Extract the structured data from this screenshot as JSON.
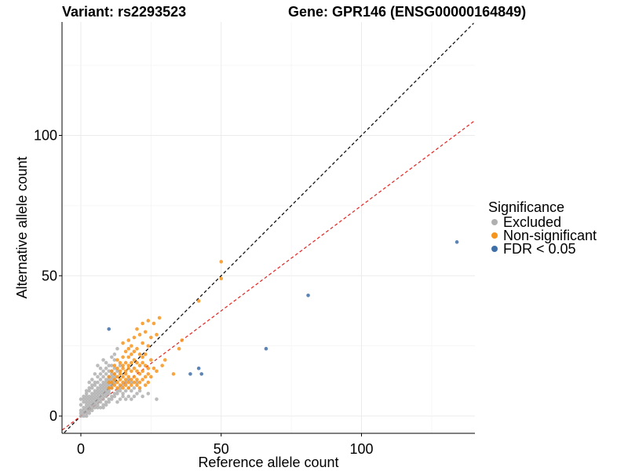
{
  "chart_data": {
    "type": "scatter",
    "title_left": "Variant: rs2293523",
    "title_right": "Gene: GPR146 (ENSG00000164849)",
    "xlabel": "Reference allele count",
    "ylabel": "Alternative allele count",
    "xlim": [
      -7,
      140
    ],
    "ylim": [
      -6,
      140
    ],
    "xticks": [
      0,
      50,
      100
    ],
    "yticks": [
      0,
      50,
      100
    ],
    "grid": true,
    "legend": {
      "title": "Significance",
      "position": "right",
      "entries": [
        {
          "label": "Excluded",
          "color": "#b0b0b0"
        },
        {
          "label": "Non-significant",
          "color": "#f7941d"
        },
        {
          "label": "FDR < 0.05",
          "color": "#3f6fa8"
        }
      ]
    },
    "reference_lines": [
      {
        "name": "identity",
        "slope": 1.0,
        "intercept": 0,
        "color": "#000000",
        "style": "dashed"
      },
      {
        "name": "fitted",
        "slope": 0.75,
        "intercept": 0,
        "color": "#e8231f",
        "style": "dashed"
      }
    ],
    "series": [
      {
        "name": "Excluded",
        "color": "#b0b0b0",
        "points": [
          [
            0,
            0
          ],
          [
            1,
            0
          ],
          [
            2,
            0
          ],
          [
            0,
            1
          ],
          [
            1,
            1
          ],
          [
            2,
            1
          ],
          [
            3,
            1
          ],
          [
            0,
            2
          ],
          [
            1,
            2
          ],
          [
            2,
            2
          ],
          [
            3,
            2
          ],
          [
            4,
            2
          ],
          [
            1,
            3
          ],
          [
            2,
            3
          ],
          [
            3,
            3
          ],
          [
            4,
            3
          ],
          [
            5,
            3
          ],
          [
            0,
            4
          ],
          [
            2,
            4
          ],
          [
            3,
            4
          ],
          [
            4,
            4
          ],
          [
            5,
            4
          ],
          [
            6,
            4
          ],
          [
            1,
            5
          ],
          [
            2,
            5
          ],
          [
            3,
            5
          ],
          [
            4,
            5
          ],
          [
            5,
            5
          ],
          [
            6,
            5
          ],
          [
            7,
            5
          ],
          [
            2,
            6
          ],
          [
            3,
            6
          ],
          [
            4,
            6
          ],
          [
            5,
            6
          ],
          [
            6,
            6
          ],
          [
            7,
            6
          ],
          [
            8,
            6
          ],
          [
            3,
            7
          ],
          [
            4,
            7
          ],
          [
            5,
            7
          ],
          [
            6,
            7
          ],
          [
            7,
            7
          ],
          [
            8,
            7
          ],
          [
            9,
            7
          ],
          [
            2,
            8
          ],
          [
            4,
            8
          ],
          [
            5,
            8
          ],
          [
            6,
            8
          ],
          [
            7,
            8
          ],
          [
            8,
            8
          ],
          [
            9,
            8
          ],
          [
            10,
            8
          ],
          [
            3,
            9
          ],
          [
            5,
            9
          ],
          [
            6,
            9
          ],
          [
            7,
            9
          ],
          [
            8,
            9
          ],
          [
            9,
            9
          ],
          [
            10,
            9
          ],
          [
            4,
            10
          ],
          [
            6,
            10
          ],
          [
            7,
            10
          ],
          [
            8,
            10
          ],
          [
            9,
            10
          ],
          [
            10,
            10
          ],
          [
            11,
            10
          ],
          [
            5,
            11
          ],
          [
            7,
            11
          ],
          [
            8,
            11
          ],
          [
            9,
            11
          ],
          [
            10,
            11
          ],
          [
            11,
            11
          ],
          [
            6,
            12
          ],
          [
            8,
            12
          ],
          [
            9,
            12
          ],
          [
            10,
            12
          ],
          [
            11,
            12
          ],
          [
            12,
            12
          ],
          [
            7,
            13
          ],
          [
            9,
            13
          ],
          [
            10,
            13
          ],
          [
            11,
            13
          ],
          [
            12,
            13
          ],
          [
            8,
            14
          ],
          [
            10,
            14
          ],
          [
            11,
            14
          ],
          [
            12,
            14
          ],
          [
            9,
            15
          ],
          [
            11,
            15
          ],
          [
            12,
            15
          ],
          [
            10,
            16
          ],
          [
            11,
            16
          ],
          [
            12,
            17
          ],
          [
            11,
            18
          ],
          [
            12,
            20
          ],
          [
            12,
            22
          ],
          [
            13,
            24
          ],
          [
            14,
            18
          ],
          [
            13,
            16
          ],
          [
            6,
            3
          ],
          [
            7,
            3
          ],
          [
            8,
            4
          ],
          [
            9,
            5
          ],
          [
            10,
            6
          ],
          [
            11,
            7
          ],
          [
            12,
            8
          ],
          [
            13,
            9
          ],
          [
            14,
            10
          ],
          [
            15,
            11
          ],
          [
            8,
            3
          ],
          [
            9,
            4
          ],
          [
            10,
            5
          ],
          [
            11,
            6
          ],
          [
            12,
            7
          ],
          [
            13,
            8
          ],
          [
            14,
            9
          ],
          [
            15,
            8
          ],
          [
            16,
            9
          ],
          [
            17,
            10
          ],
          [
            18,
            9
          ],
          [
            19,
            10
          ],
          [
            20,
            8
          ],
          [
            21,
            9
          ],
          [
            22,
            7
          ],
          [
            24,
            8
          ],
          [
            27,
            6
          ],
          [
            18,
            12
          ],
          [
            20,
            12
          ],
          [
            1,
            6
          ],
          [
            1,
            7
          ],
          [
            2,
            7
          ],
          [
            0,
            6
          ],
          [
            3,
            10
          ],
          [
            4,
            11
          ],
          [
            5,
            12
          ],
          [
            4,
            13
          ],
          [
            6,
            14
          ],
          [
            7,
            15
          ],
          [
            8,
            16
          ],
          [
            9,
            17
          ],
          [
            10,
            18
          ],
          [
            5,
            15
          ],
          [
            7,
            17
          ],
          [
            9,
            19
          ],
          [
            11,
            21
          ],
          [
            8,
            20
          ],
          [
            6,
            18
          ],
          [
            3,
            12
          ],
          [
            2,
            9
          ],
          [
            13,
            5
          ],
          [
            14,
            6
          ],
          [
            15,
            7
          ],
          [
            16,
            6
          ],
          [
            17,
            7
          ],
          [
            18,
            6
          ],
          [
            19,
            7
          ],
          [
            16,
            12
          ],
          [
            17,
            13
          ]
        ]
      },
      {
        "name": "Non-significant",
        "color": "#f7941d",
        "points": [
          [
            10,
            10
          ],
          [
            11,
            10
          ],
          [
            12,
            11
          ],
          [
            13,
            10
          ],
          [
            14,
            11
          ],
          [
            15,
            10
          ],
          [
            16,
            11
          ],
          [
            17,
            10
          ],
          [
            10,
            12
          ],
          [
            11,
            12
          ],
          [
            12,
            13
          ],
          [
            13,
            12
          ],
          [
            14,
            13
          ],
          [
            15,
            12
          ],
          [
            16,
            13
          ],
          [
            17,
            12
          ],
          [
            18,
            11
          ],
          [
            19,
            12
          ],
          [
            20,
            11
          ],
          [
            21,
            10
          ],
          [
            10,
            14
          ],
          [
            12,
            15
          ],
          [
            13,
            14
          ],
          [
            14,
            15
          ],
          [
            15,
            14
          ],
          [
            16,
            15
          ],
          [
            17,
            14
          ],
          [
            18,
            13
          ],
          [
            19,
            14
          ],
          [
            20,
            13
          ],
          [
            21,
            12
          ],
          [
            22,
            13
          ],
          [
            23,
            11
          ],
          [
            24,
            12
          ],
          [
            11,
            16
          ],
          [
            13,
            17
          ],
          [
            14,
            16
          ],
          [
            15,
            17
          ],
          [
            16,
            16
          ],
          [
            17,
            17
          ],
          [
            18,
            16
          ],
          [
            19,
            17
          ],
          [
            20,
            16
          ],
          [
            21,
            15
          ],
          [
            22,
            16
          ],
          [
            23,
            14
          ],
          [
            24,
            15
          ],
          [
            25,
            14
          ],
          [
            12,
            18
          ],
          [
            14,
            19
          ],
          [
            15,
            18
          ],
          [
            16,
            19
          ],
          [
            17,
            18
          ],
          [
            18,
            19
          ],
          [
            19,
            20
          ],
          [
            20,
            19
          ],
          [
            21,
            18
          ],
          [
            22,
            19
          ],
          [
            23,
            18
          ],
          [
            24,
            17
          ],
          [
            26,
            17
          ],
          [
            27,
            16
          ],
          [
            13,
            20
          ],
          [
            15,
            21
          ],
          [
            17,
            21
          ],
          [
            18,
            22
          ],
          [
            19,
            23
          ],
          [
            21,
            22
          ],
          [
            22,
            21
          ],
          [
            23,
            22
          ],
          [
            25,
            20
          ],
          [
            16,
            23
          ],
          [
            17,
            24
          ],
          [
            18,
            25
          ],
          [
            20,
            24
          ],
          [
            22,
            26
          ],
          [
            24,
            25
          ],
          [
            15,
            26
          ],
          [
            17,
            27
          ],
          [
            19,
            28
          ],
          [
            21,
            29
          ],
          [
            23,
            30
          ],
          [
            22,
            33
          ],
          [
            24,
            34
          ],
          [
            26,
            33
          ],
          [
            28,
            35
          ],
          [
            20,
            31
          ],
          [
            25,
            28
          ],
          [
            27,
            29
          ],
          [
            36,
            27
          ],
          [
            35,
            24
          ],
          [
            33,
            15
          ],
          [
            42,
            41
          ],
          [
            50,
            49
          ],
          [
            50,
            55
          ],
          [
            30,
            20
          ],
          [
            29,
            18
          ]
        ]
      },
      {
        "name": "FDR < 0.05",
        "color": "#3f6fa8",
        "points": [
          [
            10,
            31
          ],
          [
            39,
            15
          ],
          [
            42,
            17
          ],
          [
            43,
            15
          ],
          [
            66,
            24
          ],
          [
            81,
            43
          ],
          [
            134,
            62
          ]
        ]
      }
    ]
  }
}
